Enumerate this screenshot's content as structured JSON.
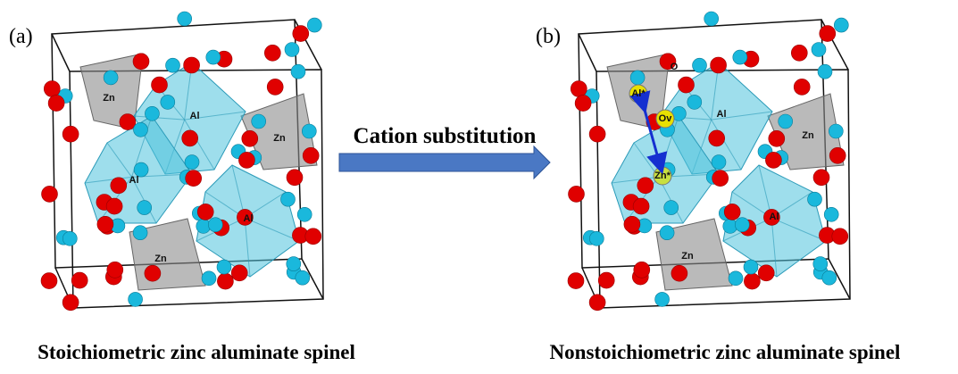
{
  "panels": [
    {
      "label": "(a)",
      "atom_labels": [
        "Zn",
        "Al",
        "Al",
        "Zn",
        "Al",
        "Zn"
      ],
      "caption": "Stoichiometric zinc aluminate spinel"
    },
    {
      "label": "(b)",
      "atom_labels": [
        "O",
        "Al*",
        "Ov",
        "Zn*",
        "Al",
        "Zn",
        "Al",
        "Zn"
      ],
      "caption": "Nonstoichiometric zinc aluminate spinel"
    }
  ],
  "arrow": {
    "label": "Cation substitution"
  }
}
